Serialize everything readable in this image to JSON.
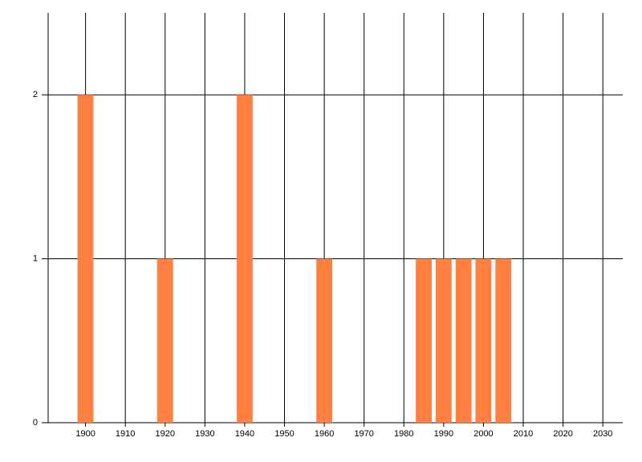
{
  "chart_data": {
    "type": "bar",
    "x": [
      1900,
      1920,
      1940,
      1960,
      1985,
      1990,
      1995,
      2000,
      2005
    ],
    "values": [
      2,
      1,
      2,
      1,
      1,
      1,
      1,
      1,
      1
    ],
    "color": "#ff8040",
    "xlim": [
      1890,
      2035
    ],
    "xticks": [
      1900,
      1910,
      1920,
      1930,
      1940,
      1950,
      1960,
      1970,
      1980,
      1990,
      2000,
      2010,
      2020,
      2030
    ],
    "ylim": [
      0,
      2.5
    ],
    "yticks": [
      0,
      1,
      2
    ],
    "grid": true
  }
}
